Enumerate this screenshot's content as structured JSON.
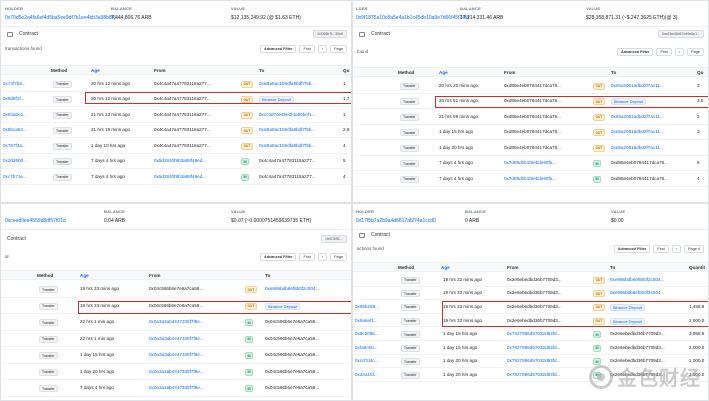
{
  "panels": [
    {
      "header": [
        {
          "label": "HOLDER",
          "value": "0x70d5e2a4fa6ef4d5ba5ee9df7b1ee4bb3a98b8f6"
        },
        {
          "label": "BALANCE",
          "value": "7,444,806.76 ARB"
        },
        {
          "label": "VALUE",
          "value": "$12,135,249.92 (@ $1.63 ETH)"
        }
      ],
      "contract_tab": "Contract",
      "contract_pill": "0xD56b7f...30e8",
      "found": "transactions found",
      "filter_label": "Advanced Filter",
      "first": "First",
      "page": "Page",
      "columns": {
        "method": "Method",
        "age": "Age",
        "from": "From",
        "to": "To",
        "qty": "Qu"
      },
      "rows": [
        {
          "hash": "0x74f7b8...",
          "method": "Transfer",
          "age": "20 hrs 12 mins ago",
          "from": "0x4c4a47a47783118a277...",
          "dir": "OUT",
          "to": "0xeBa8ac1b9dfa8bdf7f5b...",
          "qty": "1"
        },
        {
          "hash": "0x9d8f1f...",
          "method": "Transfer",
          "age": "20 hrs 12 mins ago",
          "from": "0x4c4a47a47783118a277...",
          "dir": "OUT",
          "to": "Binance Deposit",
          "qty": "1,7"
        },
        {
          "hash": "0x63abe1...",
          "method": "Transfer",
          "age": "21 hrs 13 mins ago",
          "from": "0x4c4a47a47783118a277...",
          "dir": "OUT",
          "to": "0xcc3d7ce49e2f4a80bef1...",
          "qty": "1"
        },
        {
          "hash": "0x8bca84...",
          "method": "Transfer",
          "age": "21 hrs 19 mins ago",
          "from": "0x4c4a47a47783118a277...",
          "dir": "OUT",
          "to": "0xeBa8ac1b9dfa8bdf7f5b...",
          "qty": "2,9"
        },
        {
          "hash": "0x767f3a...",
          "method": "Transfer",
          "age": "1 day 10 hrs ago",
          "from": "0x4c4a47a47783118a277...",
          "dir": "OUT",
          "to": "0xeBa8ac1b9dfa8bdf7f5b...",
          "qty": "4"
        },
        {
          "hash": "0x2d26b0...",
          "method": "Transfer",
          "age": "7 days 4 hrs ago",
          "from": "0x5d2840f9b3a88f49ed...",
          "dir": "IN",
          "to": "0x4c4a47a47783118a277...",
          "qty": "5"
        },
        {
          "hash": "0xc7b71e...",
          "method": "Transfer",
          "age": "7 days 4 hrs ago",
          "from": "0x5d2840f9b3a88f49ed...",
          "dir": "IN",
          "to": "0x4c4a47a47783118a277...",
          "qty": "4"
        }
      ]
    },
    {
      "header": [
        {
          "label": "LDER",
          "value": "0x9f1875a10c8a5e4a1b1c45db10a9e7d66f45f74fd"
        },
        {
          "label": "BALANCE",
          "value": "17,214,331.46 ARB"
        },
        {
          "label": "VALUE",
          "value": "$28,358,871.31 (~$.247,3625 ETH)(@ 3)"
        }
      ],
      "contract_tab": "Contract",
      "contract_pill": "0xeEbe45b57e99e6e1...",
      "found": "found",
      "filter_label": "Advanced Filter",
      "first": "First",
      "page": "Page",
      "columns": {
        "method": "Method",
        "age": "Age",
        "from": "From",
        "to": "To",
        "qty": "Qu"
      },
      "rows": [
        {
          "hash": "",
          "method": "Transfer",
          "age": "20 hrs 20 mins ago",
          "from": "0xd85e4eb0784417dca76...",
          "dir": "OUT",
          "to": "0xe5a2061adbd2f7ac11...",
          "qty": "3"
        },
        {
          "hash": "",
          "method": "Transfer",
          "age": "20 hrs 51 mins ago",
          "from": "0xd85e4eb0784417dca76...",
          "dir": "OUT",
          "to": "Binance Deposit",
          "qty": "3,5"
        },
        {
          "hash": "",
          "method": "Transfer",
          "age": "21 hrs 59 mins ago",
          "from": "0xd85e4eb0784417dca76...",
          "dir": "OUT",
          "to": "0xe5a2061adbd2f7ac11...",
          "qty": "2"
        },
        {
          "hash": "",
          "method": "Transfer",
          "age": "1 day 15 hrs ago",
          "from": "0xd85e4eb0784417dca76...",
          "dir": "OUT",
          "to": "0xe5a2061adbd2f7ac11...",
          "qty": "3"
        },
        {
          "hash": "",
          "method": "Transfer",
          "age": "1 day 20 hrs ago",
          "from": "0xd85e4eb0784417dca76...",
          "dir": "OUT",
          "to": "0xe5a2061adbd2f7ac11...",
          "qty": ""
        },
        {
          "hash": "",
          "method": "Transfer",
          "age": "7 days 4 hrs ago",
          "from": "0x7d89d2b1f6ebde80fe...",
          "dir": "IN",
          "to": "0xd85e4eb0784417dca76...",
          "qty": "6"
        },
        {
          "hash": "",
          "method": "Transfer",
          "age": "7 days 4 hrs ago",
          "from": "0x7d89d2b1f6ebde80fe...",
          "dir": "IN",
          "to": "0xd85e4eb0784417dca76...",
          "qty": "4"
        }
      ]
    },
    {
      "header": [
        {
          "label": "",
          "value": "0xceed9ee4559d8df57f01d"
        },
        {
          "label": "BALANCE",
          "value": "0.04 ARB"
        },
        {
          "label": "VALUE",
          "value": "$0.07 (~0.0000751459639735 ETH)"
        }
      ],
      "contract_tab": "Contract",
      "contract_pill": "0x9C83C...",
      "found": "al",
      "filter_label": "Advanced Filter",
      "first": "First",
      "page": "Page",
      "columns": {
        "method": "Method",
        "age": "Age",
        "from": "From",
        "to": "To",
        "qty": ""
      },
      "rows": [
        {
          "hash": "",
          "method": "Transfer",
          "age": "19 hrs 33 mins ago",
          "from": "0x04c566b6e7e6a7ca59...",
          "dir": "OUT",
          "to": "0xe986bdb6ef8b0f2c504...",
          "qty": ""
        },
        {
          "hash": "",
          "method": "Transfer",
          "age": "19 hrs 33 mins ago",
          "from": "0x04c566b6e7e6a7ca59...",
          "dir": "OUT",
          "to": "Binance Deposit",
          "qty": ""
        },
        {
          "hash": "",
          "method": "Transfer",
          "age": "22 hrs 1 min ago",
          "from": "0x0a3a3ab4447335f7f8e...",
          "dir": "IN",
          "to": "0x04c566b6e7e6a7ca59...",
          "qty": ""
        },
        {
          "hash": "",
          "method": "Transfer",
          "age": "22 hrs 1 min ago",
          "from": "0x0a3a3ab4447335f7f8e...",
          "dir": "IN",
          "to": "0x04c566b6e7e6a7ca59...",
          "qty": ""
        },
        {
          "hash": "",
          "method": "Transfer",
          "age": "1 day 15 hrs ago",
          "from": "0x0a3a3ab4447335f7f8e...",
          "dir": "IN",
          "to": "0x04c566b6e7e6a7ca59...",
          "qty": ""
        },
        {
          "hash": "",
          "method": "Transfer",
          "age": "1 day 20 hrs ago",
          "from": "0x0a3a3ab4447335f7f8e...",
          "dir": "IN",
          "to": "0x04c566b6e7e6a7ca59...",
          "qty": ""
        },
        {
          "hash": "",
          "method": "Transfer",
          "age": "7 days 4 hrs ago",
          "from": "0x0a3a3ab4447335f7f8e...",
          "dir": "IN",
          "to": "0x04c566b6e7e6a7ca59...",
          "qty": ""
        }
      ]
    },
    {
      "header": [
        {
          "label": "HOLDER",
          "value": "0x17f5b7a2b9a4d6817af274a1ccd0"
        },
        {
          "label": "BALANCE",
          "value": "0 ARB"
        },
        {
          "label": "VALUE",
          "value": "$0.00"
        }
      ],
      "contract_tab": "Contract",
      "contract_pill": "",
      "found": "actions found",
      "filter_label": "Advanced Filter",
      "first": "First",
      "page": "Page 4",
      "columns": {
        "method": "Method",
        "age": "Age",
        "from": "From",
        "to": "To",
        "qty": "Quantit"
      },
      "rows": [
        {
          "hash": "",
          "method": "Transfer",
          "age": "19 hrs 32 mins ago",
          "from": "0x2e6ebedbd36b7709d3...",
          "dir": "OUT",
          "to": "0xe986bdb6ef8b0f2c504...",
          "qty": ""
        },
        {
          "hash": "",
          "method": "Transfer",
          "age": "19 hrs 33 mins ago",
          "from": "0x2e6ebedbd36b7709d3...",
          "dir": "OUT",
          "to": "0xe986bdb6ef8b0f2c504...",
          "qty": ""
        },
        {
          "hash": "0x98b289...",
          "method": "Transfer",
          "age": "19 hrs 33 mins ago",
          "from": "0x2e6ebedbd36b7709d3...",
          "dir": "OUT",
          "to": "Binance Deposit",
          "qty": "1,458.8"
        },
        {
          "hash": "0x9a6ef1...",
          "method": "Transfer",
          "age": "19 hrs 33 mins ago",
          "from": "0x2e6ebedbd36b7709d3...",
          "dir": "OUT",
          "to": "Binance Deposit",
          "qty": "2,500.0"
        },
        {
          "hash": "0x5cb08b...",
          "method": "Transfer",
          "age": "1 day 15 hrs ago",
          "from": "0x7927896d97032d83fd...",
          "dir": "IN",
          "to": "0x2e6ebedbd36b7709d3...",
          "qty": "3,958.8"
        },
        {
          "hash": "0xfa8c50...",
          "method": "Transfer",
          "age": "1 day 15 hrs ago",
          "from": "0x7927896d97032d83fd...",
          "dir": "IN",
          "to": "0x2e6ebedbd36b7709d3...",
          "qty": "2,000.0"
        },
        {
          "hash": "0xcd7d4c...",
          "method": "Transfer",
          "age": "1 day 20 hrs ago",
          "from": "0x7927896d97032d83fd...",
          "dir": "IN",
          "to": "0x2e6ebedbd36b7709d3...",
          "qty": "1,000.0"
        },
        {
          "hash": "0x2ea1fd...",
          "method": "Transfer",
          "age": "1 day 20 hrs ago",
          "from": "0x7927896d97032d83fd...",
          "dir": "IN",
          "to": "0x2e6ebedbd36b7709d3...",
          "qty": "1,000.0"
        }
      ]
    }
  ],
  "watermark": "金色财经"
}
